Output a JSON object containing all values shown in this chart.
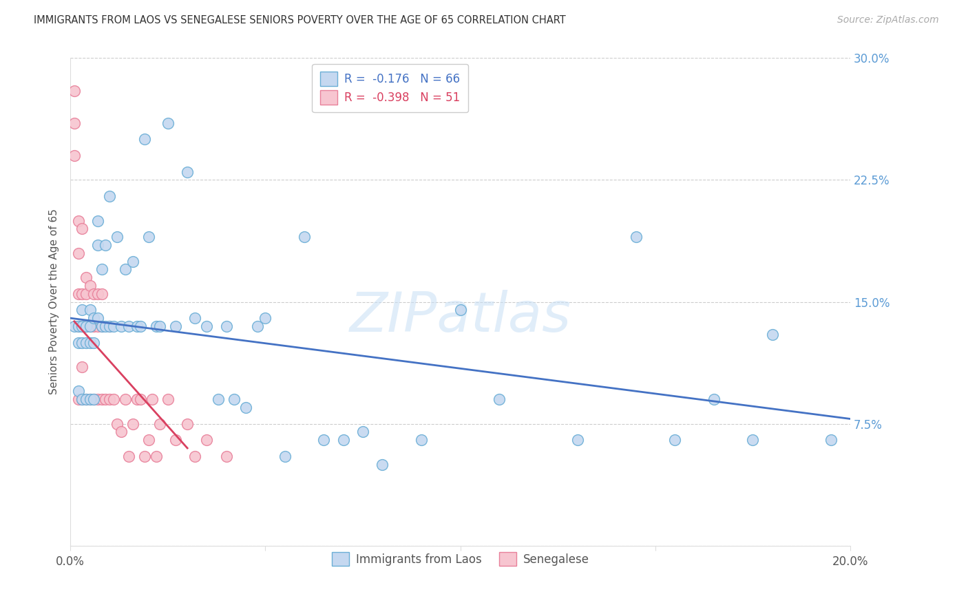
{
  "title": "IMMIGRANTS FROM LAOS VS SENEGALESE SENIORS POVERTY OVER THE AGE OF 65 CORRELATION CHART",
  "source": "Source: ZipAtlas.com",
  "ylabel": "Seniors Poverty Over the Age of 65",
  "xlim": [
    0.0,
    0.2
  ],
  "ylim": [
    0.0,
    0.3
  ],
  "xticks": [
    0.0,
    0.05,
    0.1,
    0.15,
    0.2
  ],
  "xticklabels": [
    "0.0%",
    "",
    "",
    "",
    "20.0%"
  ],
  "yticks": [
    0.0,
    0.075,
    0.15,
    0.225,
    0.3
  ],
  "yticklabels": [
    "",
    "7.5%",
    "15.0%",
    "22.5%",
    "30.0%"
  ],
  "grid_color": "#cccccc",
  "background_color": "#ffffff",
  "laos_color": "#c5d8f0",
  "laos_edge_color": "#6aaed6",
  "senegal_color": "#f7c5d0",
  "senegal_edge_color": "#e8809a",
  "laos_R": -0.176,
  "laos_N": 66,
  "senegal_R": -0.398,
  "senegal_N": 51,
  "laos_line_color": "#4472c4",
  "senegal_line_color": "#d94060",
  "watermark": "ZIPatlas",
  "legend_items": [
    "Immigrants from Laos",
    "Senegalese"
  ],
  "laos_x": [
    0.001,
    0.002,
    0.002,
    0.002,
    0.003,
    0.003,
    0.003,
    0.003,
    0.004,
    0.004,
    0.004,
    0.005,
    0.005,
    0.005,
    0.005,
    0.006,
    0.006,
    0.006,
    0.007,
    0.007,
    0.007,
    0.008,
    0.008,
    0.009,
    0.009,
    0.01,
    0.01,
    0.011,
    0.012,
    0.013,
    0.014,
    0.015,
    0.016,
    0.017,
    0.018,
    0.019,
    0.02,
    0.022,
    0.023,
    0.025,
    0.027,
    0.03,
    0.032,
    0.035,
    0.038,
    0.04,
    0.042,
    0.045,
    0.048,
    0.05,
    0.055,
    0.06,
    0.065,
    0.07,
    0.075,
    0.08,
    0.09,
    0.1,
    0.11,
    0.13,
    0.145,
    0.155,
    0.165,
    0.175,
    0.18,
    0.195
  ],
  "laos_y": [
    0.135,
    0.135,
    0.125,
    0.095,
    0.145,
    0.135,
    0.125,
    0.09,
    0.135,
    0.125,
    0.09,
    0.145,
    0.135,
    0.125,
    0.09,
    0.14,
    0.125,
    0.09,
    0.2,
    0.185,
    0.14,
    0.17,
    0.135,
    0.185,
    0.135,
    0.215,
    0.135,
    0.135,
    0.19,
    0.135,
    0.17,
    0.135,
    0.175,
    0.135,
    0.135,
    0.25,
    0.19,
    0.135,
    0.135,
    0.26,
    0.135,
    0.23,
    0.14,
    0.135,
    0.09,
    0.135,
    0.09,
    0.085,
    0.135,
    0.14,
    0.055,
    0.19,
    0.065,
    0.065,
    0.07,
    0.05,
    0.065,
    0.145,
    0.09,
    0.065,
    0.19,
    0.065,
    0.09,
    0.065,
    0.13,
    0.065
  ],
  "senegal_x": [
    0.001,
    0.001,
    0.001,
    0.002,
    0.002,
    0.002,
    0.002,
    0.002,
    0.003,
    0.003,
    0.003,
    0.003,
    0.003,
    0.004,
    0.004,
    0.004,
    0.004,
    0.005,
    0.005,
    0.005,
    0.006,
    0.006,
    0.006,
    0.007,
    0.007,
    0.007,
    0.008,
    0.008,
    0.008,
    0.009,
    0.01,
    0.01,
    0.011,
    0.012,
    0.013,
    0.014,
    0.015,
    0.016,
    0.017,
    0.018,
    0.019,
    0.02,
    0.021,
    0.022,
    0.023,
    0.025,
    0.027,
    0.03,
    0.032,
    0.035,
    0.04
  ],
  "senegal_y": [
    0.28,
    0.26,
    0.24,
    0.2,
    0.18,
    0.155,
    0.135,
    0.09,
    0.195,
    0.155,
    0.135,
    0.11,
    0.09,
    0.165,
    0.155,
    0.135,
    0.09,
    0.16,
    0.135,
    0.09,
    0.155,
    0.135,
    0.09,
    0.155,
    0.135,
    0.09,
    0.155,
    0.135,
    0.09,
    0.09,
    0.135,
    0.09,
    0.09,
    0.075,
    0.07,
    0.09,
    0.055,
    0.075,
    0.09,
    0.09,
    0.055,
    0.065,
    0.09,
    0.055,
    0.075,
    0.09,
    0.065,
    0.075,
    0.055,
    0.065,
    0.055
  ],
  "laos_line_x0": 0.0,
  "laos_line_x1": 0.2,
  "laos_line_y0": 0.14,
  "laos_line_y1": 0.078,
  "senegal_line_x0": 0.001,
  "senegal_line_x1": 0.03,
  "senegal_line_y0": 0.138,
  "senegal_line_y1": 0.06
}
